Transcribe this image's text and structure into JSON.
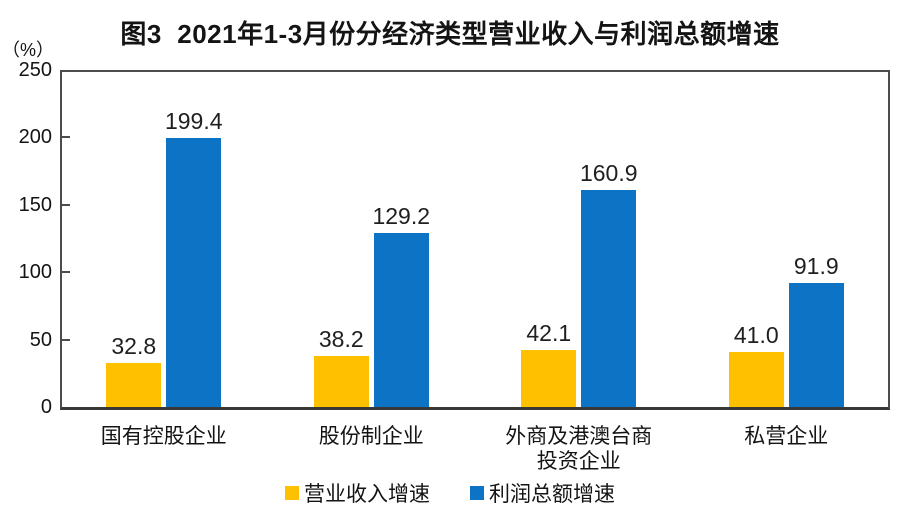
{
  "figure": {
    "title": "图3  2021年1-3月份分经济类型营业收入与利润总额增速",
    "unit_label": "（%）"
  },
  "chart_data": {
    "type": "bar",
    "title": "图3 2021年1-3月份分经济类型营业收入与利润总额增速",
    "xlabel": "",
    "ylabel": "（%）",
    "ylim": [
      0,
      250
    ],
    "yticks": [
      0,
      50,
      100,
      150,
      200,
      250
    ],
    "grid": false,
    "legend_position": "bottom",
    "categories": [
      "国有控股企业",
      "股份制企业",
      "外商及港澳台商\n投资企业",
      "私营企业"
    ],
    "series": [
      {
        "name": "营业收入增速",
        "color": "#FFC000",
        "values": [
          32.8,
          38.2,
          42.1,
          41.0
        ],
        "labels": [
          "32.8",
          "38.2",
          "42.1",
          "41.0"
        ]
      },
      {
        "name": "利润总额增速",
        "color": "#0D74C5",
        "values": [
          199.4,
          129.2,
          160.9,
          91.9
        ],
        "labels": [
          "199.4",
          "129.2",
          "160.9",
          "91.9"
        ]
      }
    ]
  }
}
